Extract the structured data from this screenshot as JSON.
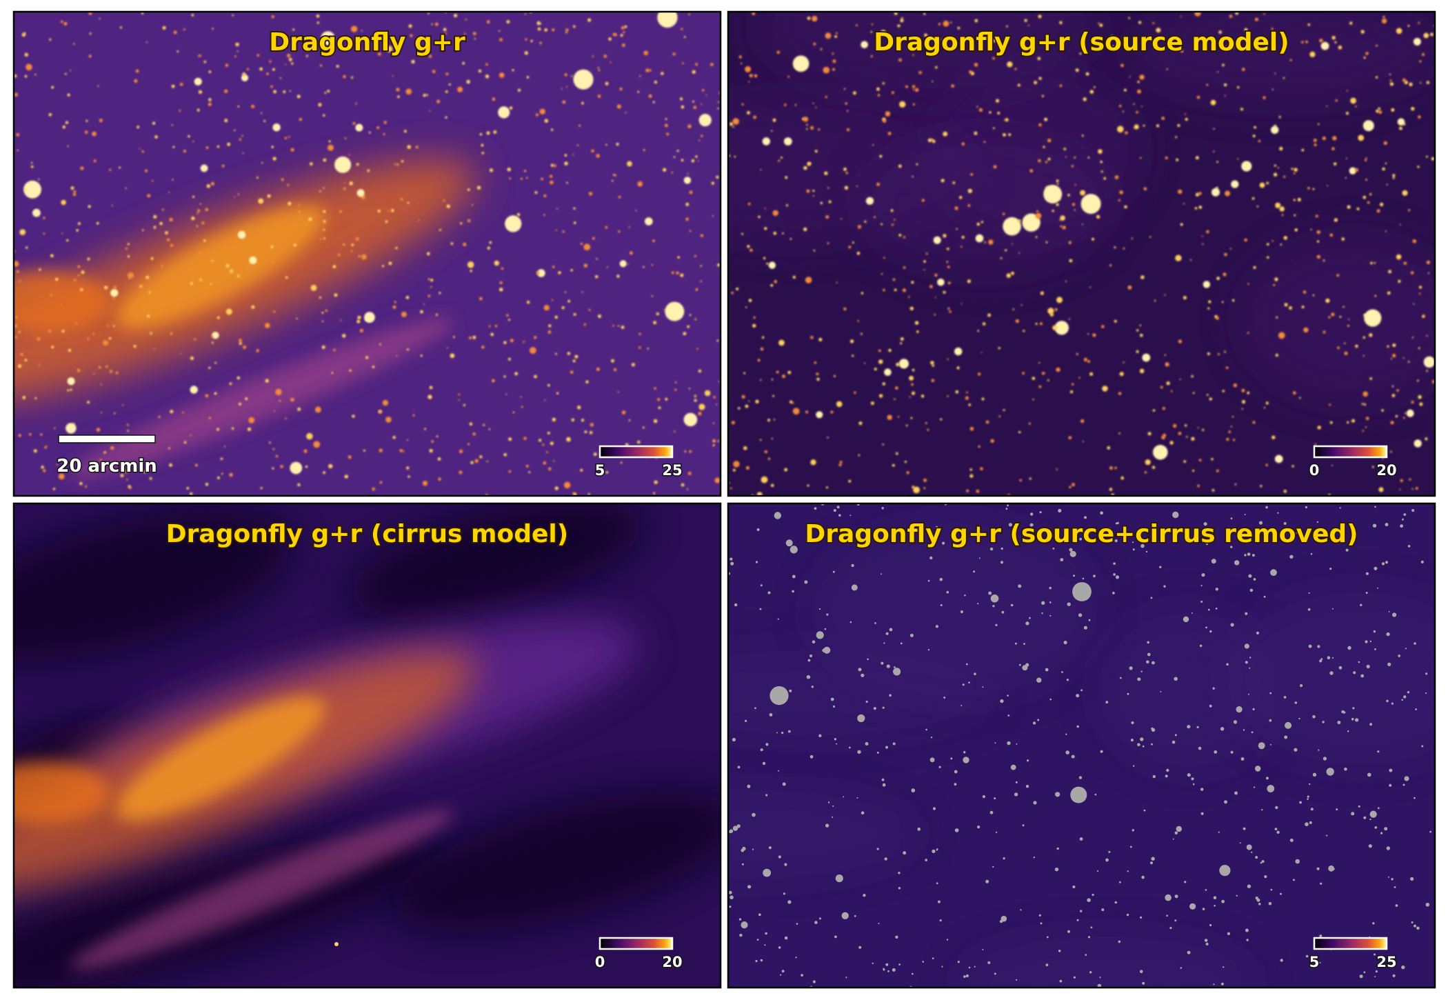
{
  "panels": [
    {
      "title": "Dragonfly g+r",
      "colorbar_ticks": [
        5,
        25
      ],
      "scale_bar": "20 arcmin"
    },
    {
      "title": "Dragonfly g+r (source model)",
      "colorbar_ticks": [
        0,
        20
      ]
    },
    {
      "title": "Dragonfly g+r (cirrus model)",
      "colorbar_ticks": [
        0,
        20
      ]
    },
    {
      "title": "Dragonfly g+r (source+cirrus removed)",
      "colorbar_ticks": [
        5,
        25
      ]
    }
  ]
}
